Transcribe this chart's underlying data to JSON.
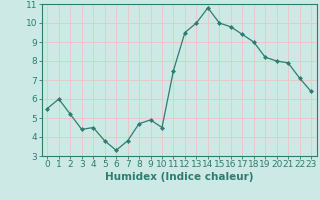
{
  "x": [
    0,
    1,
    2,
    3,
    4,
    5,
    6,
    7,
    8,
    9,
    10,
    11,
    12,
    13,
    14,
    15,
    16,
    17,
    18,
    19,
    20,
    21,
    22,
    23
  ],
  "y": [
    5.5,
    6.0,
    5.2,
    4.4,
    4.5,
    3.8,
    3.3,
    3.8,
    4.7,
    4.9,
    4.5,
    7.5,
    9.5,
    10.0,
    10.8,
    10.0,
    9.8,
    9.4,
    9.0,
    8.2,
    8.0,
    7.9,
    7.1,
    6.4
  ],
  "xlabel": "Humidex (Indice chaleur)",
  "xlim": [
    -0.5,
    23.5
  ],
  "ylim": [
    3,
    11
  ],
  "yticks": [
    3,
    4,
    5,
    6,
    7,
    8,
    9,
    10,
    11
  ],
  "xticks": [
    0,
    1,
    2,
    3,
    4,
    5,
    6,
    7,
    8,
    9,
    10,
    11,
    12,
    13,
    14,
    15,
    16,
    17,
    18,
    19,
    20,
    21,
    22,
    23
  ],
  "line_color": "#2e7d6e",
  "marker": "D",
  "marker_size": 2,
  "bg_color": "#cce9e6",
  "grid_color": "#e8c8c8",
  "axes_color": "#2e7d6e",
  "label_color": "#2e7d6e",
  "tick_label_color": "#2e7d6e",
  "xlabel_fontsize": 7.5,
  "tick_fontsize": 6.5
}
